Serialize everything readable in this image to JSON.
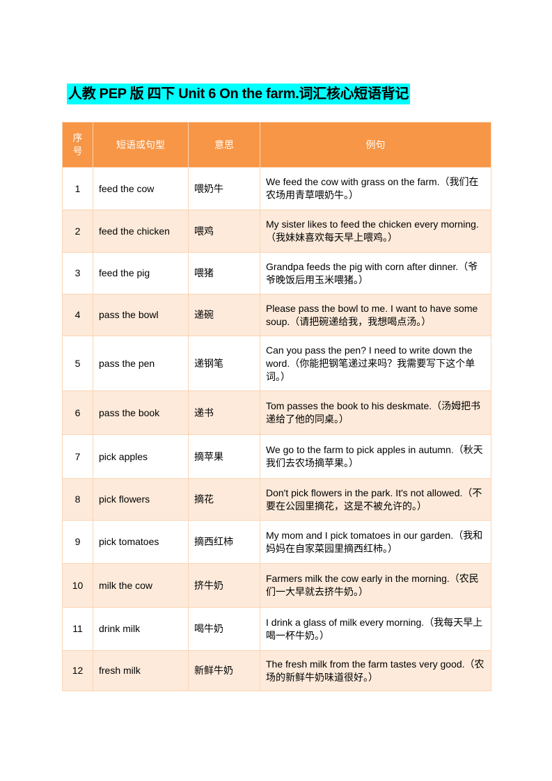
{
  "title": "人教 PEP 版 四下 Unit 6 On the farm.词汇核心短语背记",
  "headers": [
    "序号",
    "短语或句型",
    "意思",
    "例句"
  ],
  "rows": [
    {
      "no": "1",
      "phrase": "feed the cow",
      "meaning": "喂奶牛",
      "example": "We feed the cow with grass on the farm.（我们在农场用青草喂奶牛。）"
    },
    {
      "no": "2",
      "phrase": "feed the chicken",
      "meaning": "喂鸡",
      "example": "My sister likes to feed the chicken every morning.（我妹妹喜欢每天早上喂鸡。）"
    },
    {
      "no": "3",
      "phrase": "feed the pig",
      "meaning": "喂猪",
      "example": "Grandpa feeds the pig with corn after dinner.（爷爷晚饭后用玉米喂猪。）"
    },
    {
      "no": "4",
      "phrase": "pass the bowl",
      "meaning": "递碗",
      "example": "Please pass the bowl to me. I want to have some soup.（请把碗递给我，我想喝点汤。）"
    },
    {
      "no": "5",
      "phrase": "pass the pen",
      "meaning": "递钢笔",
      "example": "Can you pass the pen? I need to write down the word.（你能把钢笔递过来吗？我需要写下这个单词。）"
    },
    {
      "no": "6",
      "phrase": "pass the book",
      "meaning": "递书",
      "example": "Tom passes the book to his deskmate.（汤姆把书递给了他的同桌。）"
    },
    {
      "no": "7",
      "phrase": "pick apples",
      "meaning": "摘苹果",
      "example": "We go to the farm to pick apples in autumn.（秋天我们去农场摘苹果。）"
    },
    {
      "no": "8",
      "phrase": "pick flowers",
      "meaning": "摘花",
      "example": "Don't pick flowers in the park. It's not allowed.（不要在公园里摘花，这是不被允许的。）"
    },
    {
      "no": "9",
      "phrase": "pick tomatoes",
      "meaning": "摘西红柿",
      "example": "My mom and I pick tomatoes in our garden.（我和妈妈在自家菜园里摘西红柿。）"
    },
    {
      "no": "10",
      "phrase": "milk the cow",
      "meaning": "挤牛奶",
      "example": "Farmers milk the cow early in the morning.（农民们一大早就去挤牛奶。）"
    },
    {
      "no": "11",
      "phrase": "drink milk",
      "meaning": "喝牛奶",
      "example": "I drink a glass of milk every morning.（我每天早上喝一杯牛奶。）"
    },
    {
      "no": "12",
      "phrase": "fresh milk",
      "meaning": "新鲜牛奶",
      "example": "The fresh milk from the farm tastes very good.（农场的新鲜牛奶味道很好。）"
    }
  ],
  "colors": {
    "header_bg": "#f79646",
    "alt_row_bg": "#fdeada",
    "title_highlight": "#00ffff"
  }
}
